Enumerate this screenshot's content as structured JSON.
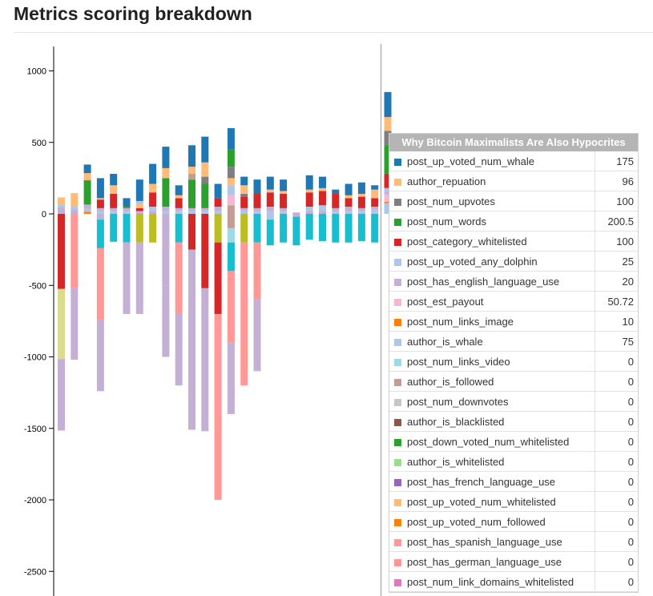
{
  "title": "Metrics scoring breakdown",
  "tooltip": {
    "title": "Why Bitcoin Maximalists Are Also Hypocrites",
    "rows": [
      {
        "name": "post_up_voted_num_whale",
        "value": "175",
        "color": "#1f77b4"
      },
      {
        "name": "author_repuation",
        "value": "96",
        "color": "#ffbb78"
      },
      {
        "name": "post_num_upvotes",
        "value": "100",
        "color": "#7f7f7f"
      },
      {
        "name": "post_num_words",
        "value": "200.5",
        "color": "#2ca02c"
      },
      {
        "name": "post_category_whitelisted",
        "value": "100",
        "color": "#d62728"
      },
      {
        "name": "post_up_voted_any_dolphin",
        "value": "25",
        "color": "#aec7e8"
      },
      {
        "name": "post_has_english_language_use",
        "value": "20",
        "color": "#c5b0d5"
      },
      {
        "name": "post_est_payout",
        "value": "50.72",
        "color": "#f7b6d2"
      },
      {
        "name": "post_num_links_image",
        "value": "10",
        "color": "#ff7f0e"
      },
      {
        "name": "author_is_whale",
        "value": "75",
        "color": "#aec7e8"
      },
      {
        "name": "post_num_links_video",
        "value": "0",
        "color": "#9edae5"
      },
      {
        "name": "author_is_followed",
        "value": "0",
        "color": "#c49c94"
      },
      {
        "name": "post_num_downvotes",
        "value": "0",
        "color": "#c7c7c7"
      },
      {
        "name": "author_is_blacklisted",
        "value": "0",
        "color": "#8c564b"
      },
      {
        "name": "post_down_voted_num_whitelisted",
        "value": "0",
        "color": "#2ca02c"
      },
      {
        "name": "author_is_whitelisted",
        "value": "0",
        "color": "#98df8a"
      },
      {
        "name": "post_has_french_language_use",
        "value": "0",
        "color": "#9467bd"
      },
      {
        "name": "post_up_voted_num_whitelisted",
        "value": "0",
        "color": "#ffbb78"
      },
      {
        "name": "post_up_voted_num_followed",
        "value": "0",
        "color": "#ff7f0e"
      },
      {
        "name": "post_has_spanish_language_use",
        "value": "0",
        "color": "#ff9896"
      },
      {
        "name": "post_has_german_language_use",
        "value": "0",
        "color": "#ff9896"
      },
      {
        "name": "post_num_link_domains_whitelisted",
        "value": "0",
        "color": "#e377c2"
      }
    ]
  },
  "chart_data": {
    "type": "bar",
    "stacked": true,
    "title": "Metrics scoring breakdown",
    "ylim": [
      -2700,
      1170
    ],
    "yticks": [
      1000,
      500,
      0,
      -500,
      -1000,
      -1500,
      -2000,
      -2500
    ],
    "highlighted_bar": 25,
    "bars": [
      {
        "pos": [
          [
            45,
            "#c5b0d5"
          ],
          [
            20,
            "#aec7e8"
          ],
          [
            50,
            "#ffbb78"
          ]
        ],
        "neg": [
          [
            -525,
            "#d62728"
          ],
          [
            -490,
            "#dbdb8d"
          ],
          [
            -500,
            "#c5b0d5"
          ]
        ]
      },
      {
        "pos": [
          [
            30,
            "#c5b0d5"
          ],
          [
            20,
            "#aec7e8"
          ],
          [
            95,
            "#ffbb78"
          ]
        ],
        "neg": [
          [
            -520,
            "#ff9896"
          ],
          [
            -500,
            "#c5b0d5"
          ]
        ]
      },
      {
        "pos": [
          [
            15,
            "#ff7f0e"
          ],
          [
            20,
            "#aec7e8"
          ],
          [
            30,
            "#c5b0d5"
          ],
          [
            170,
            "#2ca02c"
          ],
          [
            50,
            "#ffbb78"
          ],
          [
            60,
            "#1f77b4"
          ]
        ],
        "neg": []
      },
      {
        "pos": [
          [
            20,
            "#aec7e8"
          ],
          [
            20,
            "#c5b0d5"
          ],
          [
            60,
            "#d62728"
          ],
          [
            10,
            "#ffbb78"
          ],
          [
            140,
            "#1f77b4"
          ]
        ],
        "neg": [
          [
            -40,
            "#c5b0d5"
          ],
          [
            -200,
            "#17becf"
          ],
          [
            -500,
            "#ff9896"
          ],
          [
            -500,
            "#c5b0d5"
          ]
        ]
      },
      {
        "pos": [
          [
            20,
            "#aec7e8"
          ],
          [
            20,
            "#c5b0d5"
          ],
          [
            100,
            "#d62728"
          ],
          [
            60,
            "#ffbb78"
          ],
          [
            80,
            "#1f77b4"
          ]
        ],
        "neg": [
          [
            -195,
            "#17becf"
          ]
        ]
      },
      {
        "pos": [
          [
            20,
            "#aec7e8"
          ],
          [
            20,
            "#c5b0d5"
          ],
          [
            10,
            "#2ca02c"
          ],
          [
            60,
            "#1f77b4"
          ]
        ],
        "neg": [
          [
            -200,
            "#17becf"
          ],
          [
            -500,
            "#c5b0d5"
          ]
        ]
      },
      {
        "pos": [
          [
            20,
            "#c5b0d5"
          ],
          [
            20,
            "#d62728"
          ],
          [
            30,
            "#ffbb78"
          ],
          [
            20,
            "#aec7e8"
          ],
          [
            150,
            "#1f77b4"
          ]
        ],
        "neg": [
          [
            -200,
            "#bcbd22"
          ],
          [
            -500,
            "#c5b0d5"
          ]
        ]
      },
      {
        "pos": [
          [
            20,
            "#c5b0d5"
          ],
          [
            30,
            "#aec7e8"
          ],
          [
            100,
            "#d62728"
          ],
          [
            60,
            "#ffbb78"
          ],
          [
            140,
            "#1f77b4"
          ]
        ],
        "neg": [
          [
            -200,
            "#bcbd22"
          ]
        ]
      },
      {
        "pos": [
          [
            20,
            "#aec7e8"
          ],
          [
            30,
            "#c5b0d5"
          ],
          [
            200,
            "#2ca02c"
          ],
          [
            70,
            "#ffbb78"
          ],
          [
            150,
            "#1f77b4"
          ]
        ],
        "neg": [
          [
            -500,
            "#c5b0d5"
          ],
          [
            -500,
            "#c5b0d5"
          ]
        ]
      },
      {
        "pos": [
          [
            20,
            "#aec7e8"
          ],
          [
            20,
            "#c5b0d5"
          ],
          [
            70,
            "#d62728"
          ],
          [
            20,
            "#ffbb78"
          ],
          [
            70,
            "#1f77b4"
          ]
        ],
        "neg": [
          [
            -200,
            "#17becf"
          ],
          [
            -500,
            "#ff9896"
          ],
          [
            -500,
            "#c5b0d5"
          ]
        ]
      },
      {
        "pos": [
          [
            20,
            "#aec7e8"
          ],
          [
            20,
            "#c5b0d5"
          ],
          [
            200,
            "#2ca02c"
          ],
          [
            40,
            "#c49c94"
          ],
          [
            50,
            "#ffbb78"
          ],
          [
            150,
            "#1f77b4"
          ]
        ],
        "neg": [
          [
            -250,
            "#d62728"
          ],
          [
            -1260,
            "#c5b0d5"
          ]
        ]
      },
      {
        "pos": [
          [
            20,
            "#aec7e8"
          ],
          [
            20,
            "#c5b0d5"
          ],
          [
            170,
            "#2ca02c"
          ],
          [
            50,
            "#7f7f7f"
          ],
          [
            100,
            "#ffbb78"
          ],
          [
            180,
            "#1f77b4"
          ]
        ],
        "neg": [
          [
            -520,
            "#d62728"
          ],
          [
            -1000,
            "#c5b0d5"
          ]
        ]
      },
      {
        "pos": [
          [
            20,
            "#aec7e8"
          ],
          [
            30,
            "#c5b0d5"
          ],
          [
            60,
            "#d62728"
          ],
          [
            100,
            "#1f77b4"
          ]
        ],
        "neg": [
          [
            -200,
            "#bcbd22"
          ],
          [
            -500,
            "#d62728"
          ],
          [
            -1300,
            "#ff9896"
          ]
        ]
      },
      {
        "pos": [
          [
            60,
            "#c49c94"
          ],
          [
            70,
            "#f7b6d2"
          ],
          [
            70,
            "#aec7e8"
          ],
          [
            50,
            "#ffbb78"
          ],
          [
            80,
            "#7f7f7f"
          ],
          [
            120,
            "#2ca02c"
          ],
          [
            150,
            "#1f77b4"
          ]
        ],
        "neg": [
          [
            -100,
            "#c49c94"
          ],
          [
            -100,
            "#9edae5"
          ],
          [
            -200,
            "#17becf"
          ],
          [
            -500,
            "#ff9896"
          ],
          [
            -500,
            "#c5b0d5"
          ]
        ]
      },
      {
        "pos": [
          [
            20,
            "#aec7e8"
          ],
          [
            20,
            "#c5b0d5"
          ],
          [
            80,
            "#d62728"
          ],
          [
            20,
            "#7f7f7f"
          ],
          [
            60,
            "#ffbb78"
          ],
          [
            60,
            "#1f77b4"
          ]
        ],
        "neg": [
          [
            -200,
            "#bcbd22"
          ],
          [
            -500,
            "#ff9896"
          ],
          [
            -500,
            "#ff9896"
          ]
        ]
      },
      {
        "pos": [
          [
            20,
            "#aec7e8"
          ],
          [
            20,
            "#c5b0d5"
          ],
          [
            100,
            "#d62728"
          ],
          [
            100,
            "#1f77b4"
          ]
        ],
        "neg": [
          [
            -200,
            "#17becf"
          ],
          [
            -400,
            "#ff9896"
          ],
          [
            -500,
            "#c5b0d5"
          ]
        ]
      },
      {
        "pos": [
          [
            20,
            "#aec7e8"
          ],
          [
            30,
            "#c5b0d5"
          ],
          [
            100,
            "#d62728"
          ],
          [
            20,
            "#ffbb78"
          ],
          [
            90,
            "#1f77b4"
          ]
        ],
        "neg": [
          [
            -40,
            "#aec7e8"
          ],
          [
            -180,
            "#17becf"
          ]
        ]
      },
      {
        "pos": [
          [
            20,
            "#aec7e8"
          ],
          [
            20,
            "#c5b0d5"
          ],
          [
            100,
            "#d62728"
          ],
          [
            20,
            "#ffbb78"
          ],
          [
            80,
            "#1f77b4"
          ]
        ],
        "neg": [
          [
            -200,
            "#17becf"
          ]
        ]
      },
      {
        "pos": [
          [
            10,
            "#c5b0d5"
          ]
        ],
        "neg": [
          [
            -20,
            "#c5b0d5"
          ],
          [
            -200,
            "#17becf"
          ]
        ]
      },
      {
        "pos": [
          [
            20,
            "#c5b0d5"
          ],
          [
            30,
            "#aec7e8"
          ],
          [
            100,
            "#d62728"
          ],
          [
            20,
            "#ffbb78"
          ],
          [
            100,
            "#1f77b4"
          ]
        ],
        "neg": [
          [
            -180,
            "#17becf"
          ]
        ]
      },
      {
        "pos": [
          [
            20,
            "#c5b0d5"
          ],
          [
            40,
            "#aec7e8"
          ],
          [
            100,
            "#d62728"
          ],
          [
            20,
            "#ffbb78"
          ],
          [
            80,
            "#1f77b4"
          ]
        ],
        "neg": [
          [
            -190,
            "#17becf"
          ]
        ]
      },
      {
        "pos": [
          [
            20,
            "#aec7e8"
          ],
          [
            20,
            "#c5b0d5"
          ],
          [
            100,
            "#d62728"
          ],
          [
            30,
            "#1f77b4"
          ]
        ],
        "neg": [
          [
            -200,
            "#17becf"
          ]
        ]
      },
      {
        "pos": [
          [
            20,
            "#aec7e8"
          ],
          [
            30,
            "#c5b0d5"
          ],
          [
            60,
            "#d62728"
          ],
          [
            20,
            "#ffbb78"
          ],
          [
            80,
            "#1f77b4"
          ]
        ],
        "neg": [
          [
            -200,
            "#17becf"
          ]
        ]
      },
      {
        "pos": [
          [
            20,
            "#aec7e8"
          ],
          [
            20,
            "#c5b0d5"
          ],
          [
            80,
            "#d62728"
          ],
          [
            20,
            "#ffbb78"
          ],
          [
            80,
            "#1f77b4"
          ]
        ],
        "neg": [
          [
            -190,
            "#17becf"
          ]
        ]
      },
      {
        "pos": [
          [
            30,
            "#aec7e8"
          ],
          [
            20,
            "#c5b0d5"
          ],
          [
            60,
            "#d62728"
          ],
          [
            60,
            "#ffbb78"
          ],
          [
            30,
            "#1f77b4"
          ]
        ],
        "neg": [
          [
            -200,
            "#17becf"
          ]
        ]
      },
      {
        "pos": [
          [
            75,
            "#aec7e8"
          ],
          [
            10,
            "#ff7f0e"
          ],
          [
            50.72,
            "#f7b6d2"
          ],
          [
            20,
            "#c5b0d5"
          ],
          [
            25,
            "#aec7e8"
          ],
          [
            100,
            "#d62728"
          ],
          [
            200.5,
            "#2ca02c"
          ],
          [
            100,
            "#7f7f7f"
          ],
          [
            96,
            "#ffbb78"
          ],
          [
            175,
            "#1f77b4"
          ]
        ],
        "neg": []
      }
    ]
  }
}
